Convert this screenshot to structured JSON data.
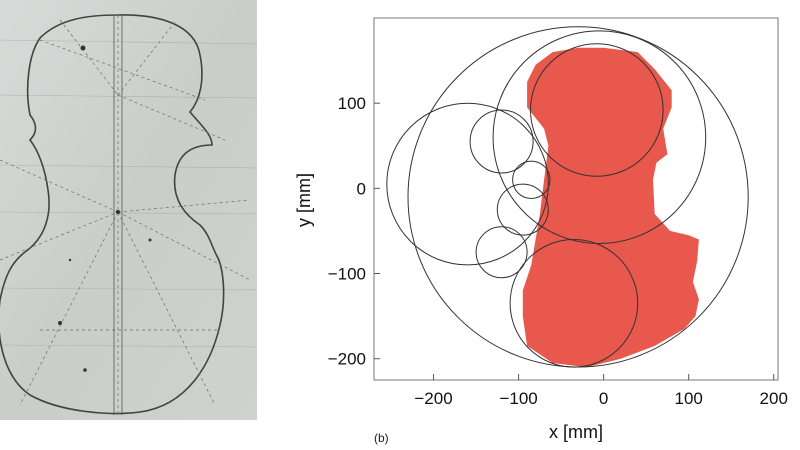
{
  "photo": {
    "caption": ""
  },
  "panel_label": "(b)",
  "chart_data": {
    "type": "scatter",
    "title": "",
    "xlabel": "x [mm]",
    "ylabel": "y [mm]",
    "xlim": [
      -270,
      205
    ],
    "ylim": [
      -225,
      200
    ],
    "xticks": [
      -200,
      -100,
      0,
      100,
      200
    ],
    "yticks": [
      -200,
      -100,
      0,
      100
    ],
    "grid": false,
    "colors": {
      "fill": "#e8584c",
      "circle_stroke": "#333333"
    },
    "series": [
      {
        "kind": "filled-outline",
        "x": [
          0,
          40,
          60,
          80,
          80,
          70,
          75,
          62,
          58,
          60,
          78,
          100,
          112,
          110,
          105,
          112,
          108,
          95,
          60,
          20,
          -20,
          -60,
          -90,
          -95,
          -95,
          -85,
          -80,
          -75,
          -70,
          -65,
          -70,
          -90,
          -90,
          -80,
          -60,
          -30,
          0
        ],
        "y": [
          165,
          160,
          140,
          115,
          95,
          70,
          40,
          30,
          10,
          -30,
          -50,
          -55,
          -60,
          -85,
          -110,
          -130,
          -150,
          -165,
          -185,
          -200,
          -210,
          -205,
          -185,
          -150,
          -120,
          -90,
          -60,
          -30,
          10,
          50,
          70,
          95,
          125,
          145,
          160,
          165,
          165
        ]
      }
    ],
    "circles": [
      {
        "cx": -30,
        "cy": -10,
        "r": 200
      },
      {
        "cx": -5,
        "cy": 60,
        "r": 125
      },
      {
        "cx": -8,
        "cy": 92,
        "r": 78
      },
      {
        "cx": -160,
        "cy": 5,
        "r": 95
      },
      {
        "cx": -120,
        "cy": 55,
        "r": 37
      },
      {
        "cx": -85,
        "cy": 10,
        "r": 22
      },
      {
        "cx": -95,
        "cy": -25,
        "r": 30
      },
      {
        "cx": -120,
        "cy": -75,
        "r": 30
      },
      {
        "cx": -35,
        "cy": -135,
        "r": 75
      }
    ]
  }
}
